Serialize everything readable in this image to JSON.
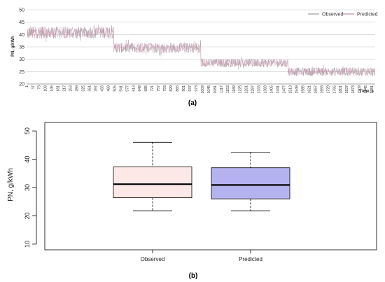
{
  "chart_data": [
    {
      "type": "line",
      "panel_label": "(a)",
      "xlabel": "Time, s",
      "ylabel": "PN, g/kWh",
      "ylim": [
        20,
        50
      ],
      "yticks": [
        20,
        25,
        30,
        35,
        40,
        45,
        50
      ],
      "grid": "horizontal",
      "legend": "top-right",
      "xlim": [
        1,
        2000
      ],
      "xticks": [
        1,
        37,
        73,
        109,
        145,
        181,
        217,
        253,
        289,
        325,
        361,
        397,
        433,
        469,
        505,
        541,
        577,
        613,
        649,
        685,
        721,
        757,
        793,
        829,
        865,
        901,
        937,
        973,
        1009,
        1045,
        1081,
        1117,
        1153,
        1189,
        1225,
        1261,
        1297,
        1333,
        1369,
        1405,
        1441,
        1477,
        1513,
        1549,
        1585,
        1621,
        1657,
        1693,
        1729,
        1765,
        1801,
        1837,
        1873,
        1909,
        1945,
        1981
      ],
      "segments": [
        {
          "x": [
            1,
            500
          ],
          "level": 40.8,
          "range": [
            37.5,
            44
          ]
        },
        {
          "x": [
            501,
            1000
          ],
          "level": 34.6,
          "range": [
            32,
            37.5
          ]
        },
        {
          "x": [
            1001,
            1500
          ],
          "level": 28.5,
          "range": [
            26.5,
            31
          ]
        },
        {
          "x": [
            1501,
            2000
          ],
          "level": 25.0,
          "range": [
            23,
            27.5
          ]
        }
      ],
      "series": [
        {
          "name": "Observed",
          "color": "#9a9a9a"
        },
        {
          "name": "Predicted",
          "color": "#c98aa9"
        }
      ]
    },
    {
      "type": "box",
      "panel_label": "(b)",
      "ylabel": "PN, g/kWh",
      "ylim": [
        8,
        53
      ],
      "yticks": [
        10,
        20,
        30,
        40,
        50
      ],
      "categories": [
        "Observed",
        "Predicted"
      ],
      "boxes": [
        {
          "name": "Observed",
          "min": 21.8,
          "q1": 26.4,
          "median": 31.2,
          "q3": 37.3,
          "max": 46.0,
          "color": "#fce8e6"
        },
        {
          "name": "Predicted",
          "min": 21.8,
          "q1": 26.0,
          "median": 30.9,
          "q3": 37.0,
          "max": 42.5,
          "color": "#b5b2f0"
        }
      ]
    }
  ]
}
